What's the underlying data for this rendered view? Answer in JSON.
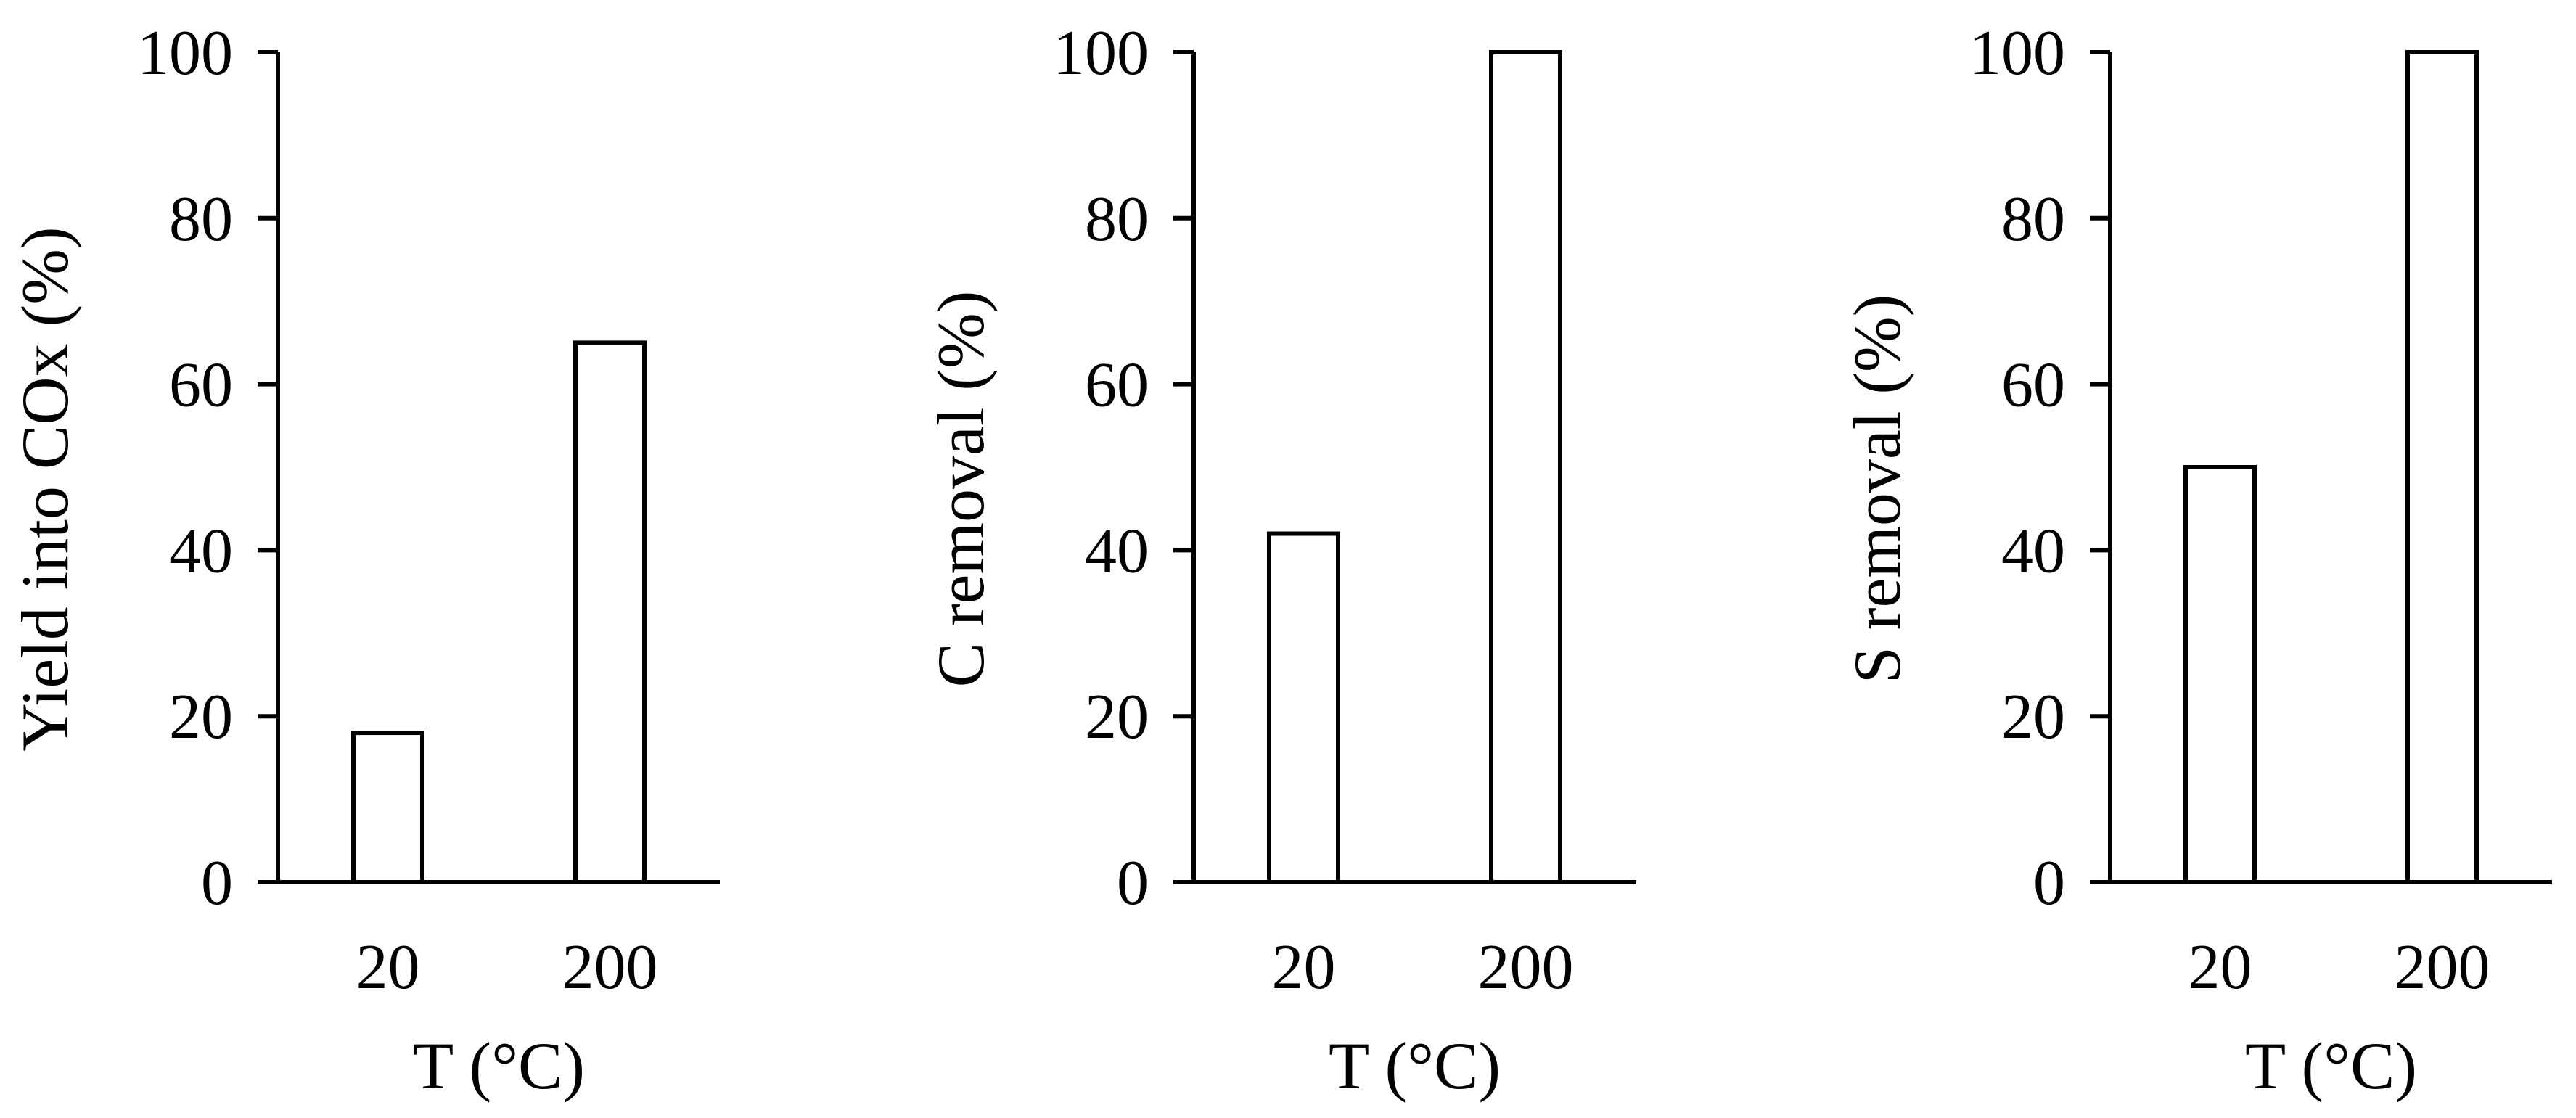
{
  "figure": {
    "background": "#ffffff",
    "bar_fill": "#ffffff",
    "line_color": "#000000"
  },
  "chart_data": [
    {
      "type": "bar",
      "categories": [
        "20",
        "200"
      ],
      "values": [
        18,
        65
      ],
      "xlabel": "T (°C)",
      "ylabel": "Yield into COx (%)",
      "ylim": [
        0,
        100
      ],
      "yticks": [
        0,
        20,
        40,
        60,
        80,
        100
      ],
      "grid": false
    },
    {
      "type": "bar",
      "categories": [
        "20",
        "200"
      ],
      "values": [
        42,
        100
      ],
      "xlabel": "T (°C)",
      "ylabel": "C removal (%)",
      "ylim": [
        0,
        100
      ],
      "yticks": [
        0,
        20,
        40,
        60,
        80,
        100
      ],
      "grid": false
    },
    {
      "type": "bar",
      "categories": [
        "20",
        "200"
      ],
      "values": [
        50,
        100
      ],
      "xlabel": "T (°C)",
      "ylabel": "S removal (%)",
      "ylim": [
        0,
        100
      ],
      "yticks": [
        0,
        20,
        40,
        60,
        80,
        100
      ],
      "grid": false
    }
  ]
}
